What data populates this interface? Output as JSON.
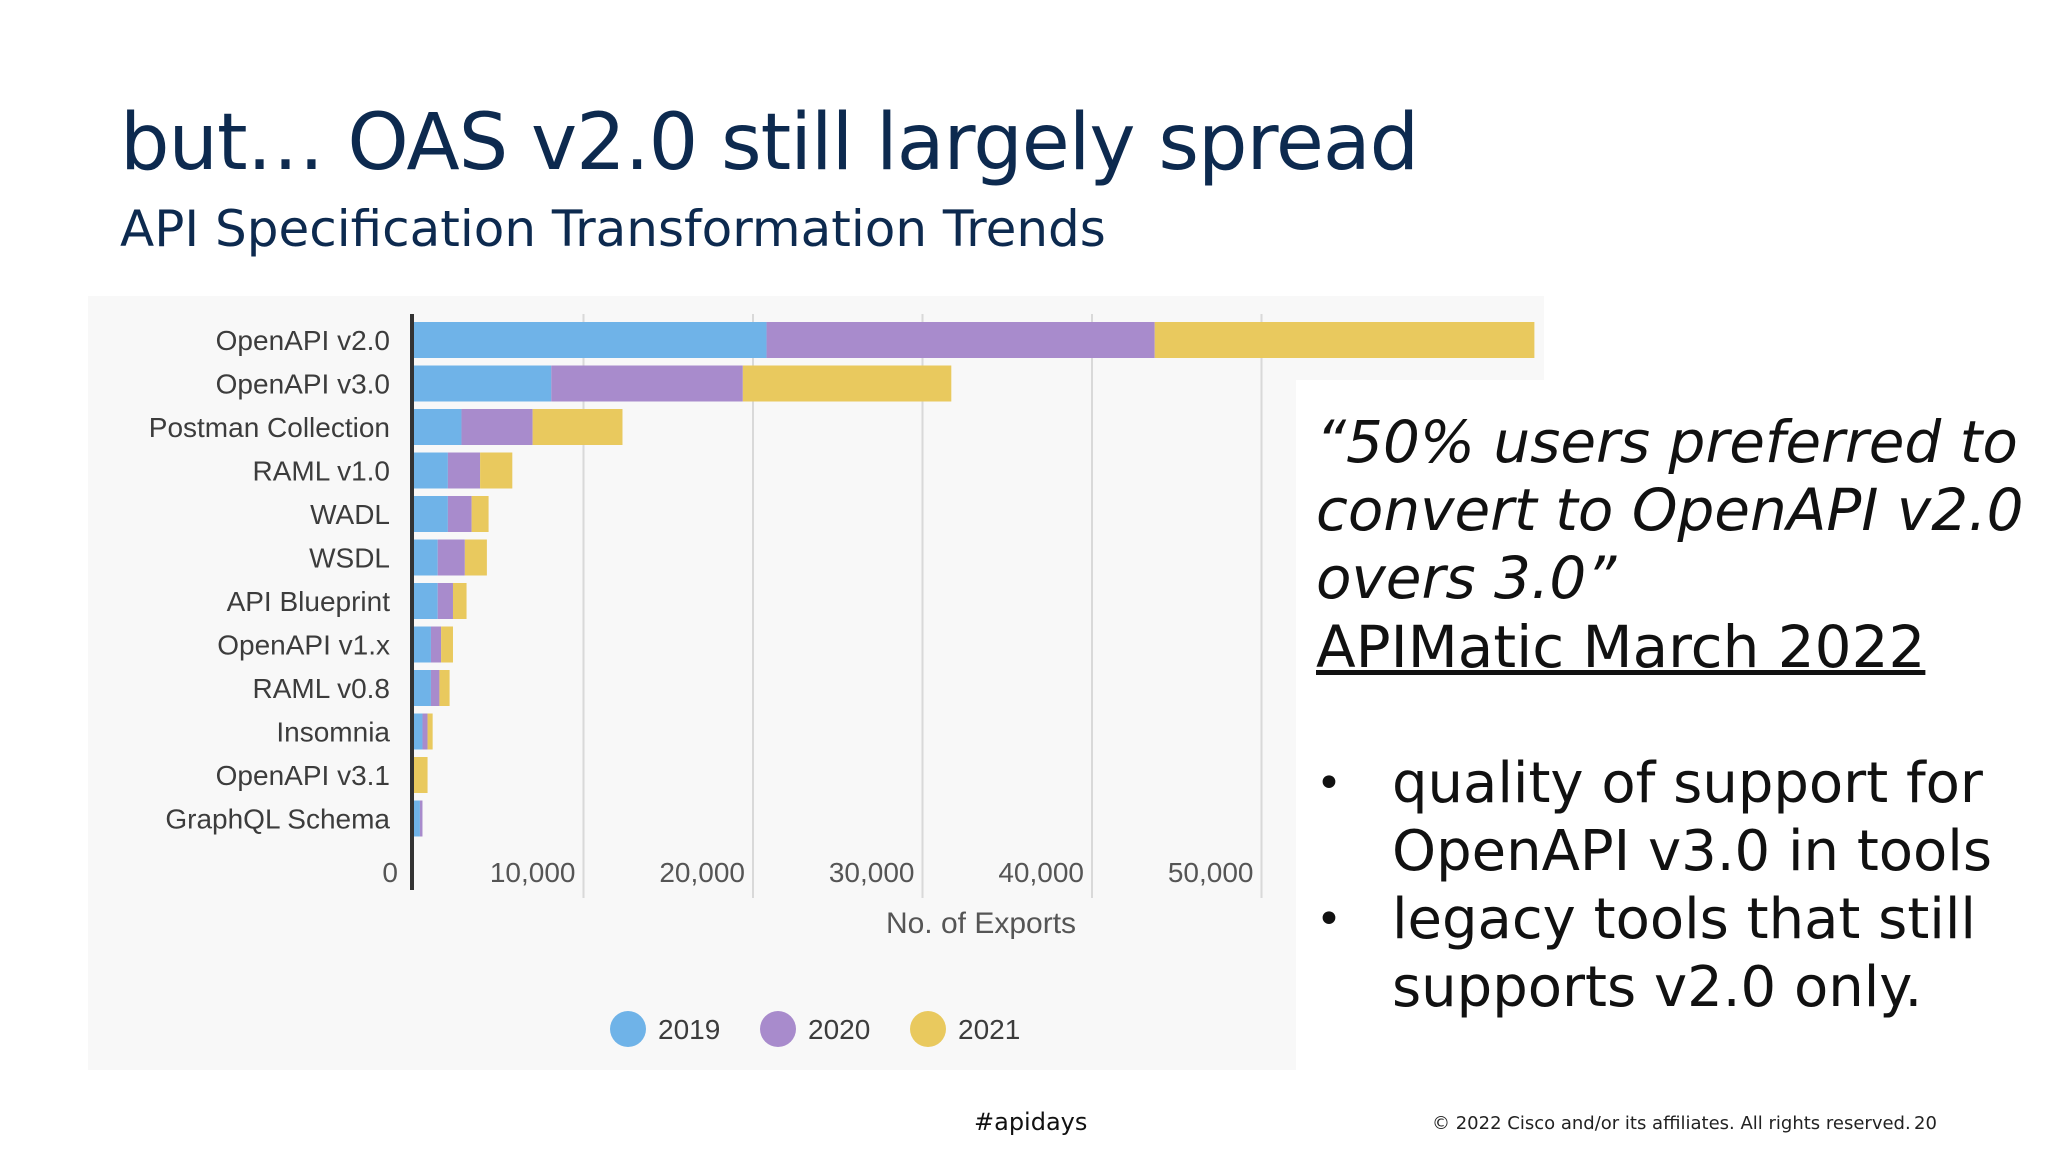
{
  "slide": {
    "title": "but… OAS v2.0 still largely spread",
    "subtitle": "API Specification Transformation Trends",
    "quote": "“50% users preferred to convert to OpenAPI v2.0 overs 3.0”",
    "source": "APIMatic March 2022",
    "bullets": [
      "quality of support for OpenAPI v3.0 in tools",
      "legacy tools that still supports v2.0 only."
    ],
    "footer_tag": "#apidays",
    "copyright": "© 2022  Cisco and/or its affiliates. All rights reserved.",
    "page_number": "20"
  },
  "chart_data": {
    "type": "bar",
    "orientation": "horizontal",
    "stacked": true,
    "categories": [
      "OpenAPI v2.0",
      "OpenAPI v3.0",
      "Postman Collection",
      "RAML v1.0",
      "WADL",
      "WSDL",
      "API Blueprint",
      "OpenAPI v1.x",
      "RAML v0.8",
      "Insomnia",
      "OpenAPI v3.1",
      "GraphQL Schema"
    ],
    "series": [
      {
        "name": "2019",
        "color": "#6fb3e8",
        "values": [
          20800,
          8100,
          2800,
          2000,
          2000,
          1400,
          1400,
          1000,
          1000,
          500,
          0,
          350
        ]
      },
      {
        "name": "2020",
        "color": "#a88bcc",
        "values": [
          22900,
          11300,
          4200,
          1900,
          1400,
          1600,
          900,
          600,
          500,
          300,
          0,
          150
        ]
      },
      {
        "name": "2021",
        "color": "#e9c95e",
        "values": [
          22400,
          12300,
          5300,
          1900,
          1000,
          1300,
          800,
          700,
          600,
          300,
          800,
          0
        ]
      }
    ],
    "xlabel": "No. of Exports",
    "ylabel": "",
    "xticks": [
      0,
      10000,
      20000,
      30000,
      40000,
      50000
    ],
    "xtick_labels": [
      "0",
      "10,000",
      "20,000",
      "30,000",
      "40,000",
      "50,000"
    ],
    "xlim": [
      0,
      66000
    ],
    "grid": true,
    "legend_position": "bottom"
  }
}
